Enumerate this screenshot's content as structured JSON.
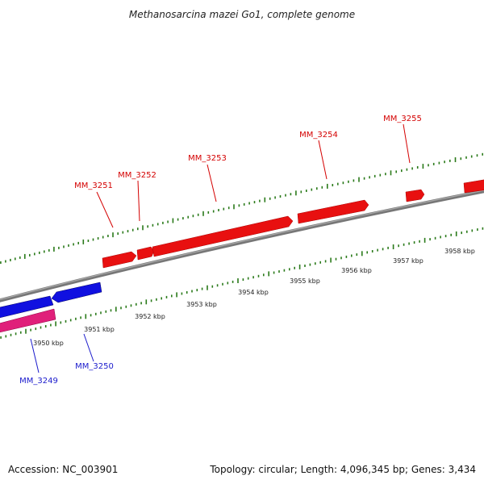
{
  "title": "Methanosarcina mazei Go1, complete genome",
  "footer": {
    "accession": "Accession: NC_003901",
    "summary": "Topology: circular; Length: 4,096,345 bp; Genes: 3,434"
  },
  "colors": {
    "backbone": "#888888",
    "tick": "#2a7a1a",
    "forward_gene": "#e81010",
    "reverse_gene": "#1010e0",
    "pink_gene": "#e0207a",
    "red_label": "#d40000",
    "blue_label": "#1a1acc"
  },
  "scale_labels": [
    "3950 kbp",
    "3951 kbp",
    "3952 kbp",
    "3953 kbp",
    "3954 kbp",
    "3955 kbp",
    "3956 kbp",
    "3957 kbp",
    "3958 kbp"
  ],
  "genes_forward": [
    "MM_3251",
    "MM_3252",
    "MM_3253",
    "MM_3254",
    "MM_3255"
  ],
  "genes_reverse": [
    "MM_3249",
    "MM_3250"
  ]
}
